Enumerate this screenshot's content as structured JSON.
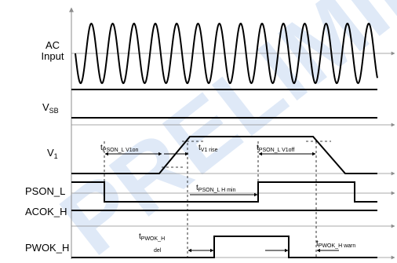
{
  "watermark": "PRELIMINARY",
  "signals": {
    "ac_input": {
      "line1": "AC",
      "line2": "Input"
    },
    "vsb": {
      "main": "V",
      "sub": "SB"
    },
    "v1": {
      "main": "V",
      "sub": "1"
    },
    "pson_l": "PSON_L",
    "acok_h": "ACOK_H",
    "pwok_h": "PWOK_H"
  },
  "timing": {
    "pson_v1on": {
      "t": "t",
      "sub": "PSON_L V1on"
    },
    "v1_rise": {
      "t": "t",
      "sub": "V1 rise"
    },
    "pson_v1off": {
      "t": "t",
      "sub": "PSON_L V1off"
    },
    "pson_h_min": {
      "t": "t",
      "sub": "PSON_L H min"
    },
    "pwok_del": {
      "t": "t",
      "sub": "PWOK_H",
      "sub2": "del"
    },
    "pwok_warn": {
      "t": "t",
      "sub": "PWOK_H warn"
    }
  },
  "colors": {
    "waveform": "#000000",
    "axis": "#8c8c8c",
    "watermark": "#dfe9f7"
  }
}
